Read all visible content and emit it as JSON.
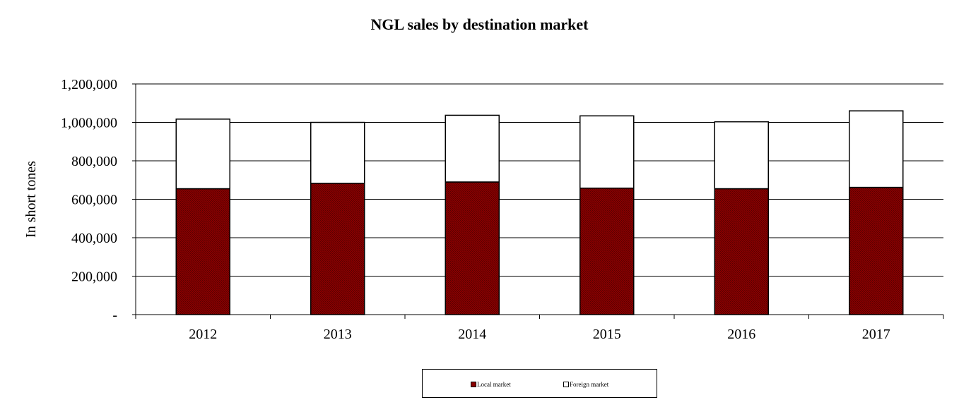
{
  "chart_data": {
    "type": "bar",
    "stacked": true,
    "title": "NGL sales by destination market",
    "xlabel": "",
    "ylabel": "In short tones",
    "categories": [
      "2012",
      "2013",
      "2014",
      "2015",
      "2016",
      "2017"
    ],
    "series": [
      {
        "name": "Local market",
        "color": "#8b0000",
        "values": [
          655000,
          683000,
          690000,
          658000,
          655000,
          662000
        ]
      },
      {
        "name": "Foreign market",
        "color": "#ffffff",
        "values": [
          362000,
          317000,
          347000,
          376000,
          348000,
          398000
        ]
      }
    ],
    "ylim": [
      0,
      1200000
    ],
    "yticks": [
      0,
      200000,
      400000,
      600000,
      800000,
      1000000,
      1200000
    ],
    "ytick_labels": [
      "-",
      "200,000",
      "400,000",
      "600,000",
      "800,000",
      "1,000,000",
      "1,200,000"
    ],
    "grid": true,
    "legend_position": "bottom"
  }
}
